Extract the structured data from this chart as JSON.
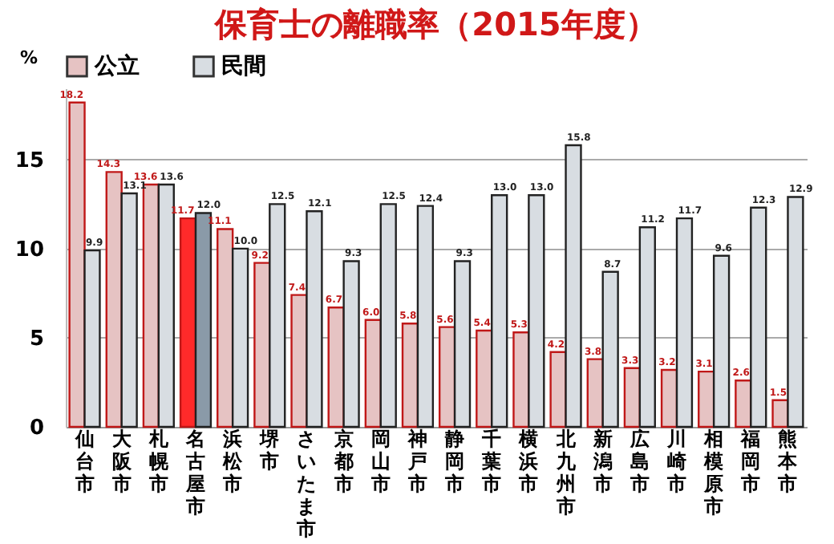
{
  "chart_data": {
    "type": "bar",
    "title": "保育士の離職率（2015年度）",
    "ylabel": "%",
    "categories": [
      "仙台市",
      "大阪市",
      "札幌市",
      "名古屋市",
      "浜松市",
      "堺市",
      "さいたま市",
      "京都市",
      "岡山市",
      "神戸市",
      "静岡市",
      "千葉市",
      "横浜市",
      "北九州市",
      "新潟市",
      "広島市",
      "川崎市",
      "相模原市",
      "福岡市",
      "熊本市"
    ],
    "series": [
      {
        "name": "公立",
        "color": "#e6c3c3",
        "colors": [
          "#e6c3c3",
          "#e6c3c3",
          "#e6c3c3",
          "#ff2a2a",
          "#e6c3c3",
          "#e6c3c3",
          "#e6c3c3",
          "#e6c3c3",
          "#e6c3c3",
          "#e6c3c3",
          "#e6c3c3",
          "#e6c3c3",
          "#e6c3c3",
          "#e6c3c3",
          "#e6c3c3",
          "#e6c3c3",
          "#e6c3c3",
          "#e6c3c3",
          "#e6c3c3",
          "#e6c3c3"
        ],
        "values": [
          18.2,
          14.3,
          13.6,
          11.7,
          11.1,
          9.2,
          7.4,
          6.7,
          6.0,
          5.8,
          5.6,
          5.4,
          5.3,
          4.2,
          3.8,
          3.3,
          3.2,
          3.1,
          2.6,
          1.5
        ],
        "value_labels": [
          "18.2",
          "14.3",
          "13.6",
          "11.7",
          "11.1",
          "9.2",
          "7.4",
          "6.7",
          "6.0",
          "5.8",
          "5.6",
          "5.4",
          "5.3",
          "4.2",
          "3.8",
          "3.3",
          "3.2",
          "3.1",
          "2.6",
          "1.5"
        ]
      },
      {
        "name": "民間",
        "color": "#d8dde2",
        "colors": [
          "#d8dde2",
          "#d8dde2",
          "#d8dde2",
          "#8a9aa8",
          "#d8dde2",
          "#d8dde2",
          "#d8dde2",
          "#d8dde2",
          "#d8dde2",
          "#d8dde2",
          "#d8dde2",
          "#d8dde2",
          "#d8dde2",
          "#d8dde2",
          "#d8dde2",
          "#d8dde2",
          "#d8dde2",
          "#d8dde2",
          "#d8dde2",
          "#d8dde2"
        ],
        "values": [
          9.9,
          13.1,
          13.6,
          12.0,
          10.0,
          12.5,
          12.1,
          9.3,
          12.5,
          12.4,
          9.3,
          13.0,
          13.0,
          15.8,
          8.7,
          11.2,
          11.7,
          9.6,
          12.3,
          12.9
        ],
        "value_labels": [
          "9.9",
          "13.1",
          "13.6",
          "12.0",
          "10.0",
          "12.5",
          "12.1",
          "9.3",
          "12.5",
          "12.4",
          "9.3",
          "13.0",
          "13.0",
          "15.8",
          "8.7",
          "11.2",
          "11.7",
          "9.6",
          "12.3",
          "12.9"
        ]
      }
    ],
    "ylim": [
      0,
      19
    ],
    "yticks": [
      0,
      5,
      10,
      15
    ],
    "grid": "y",
    "legend": "top"
  }
}
